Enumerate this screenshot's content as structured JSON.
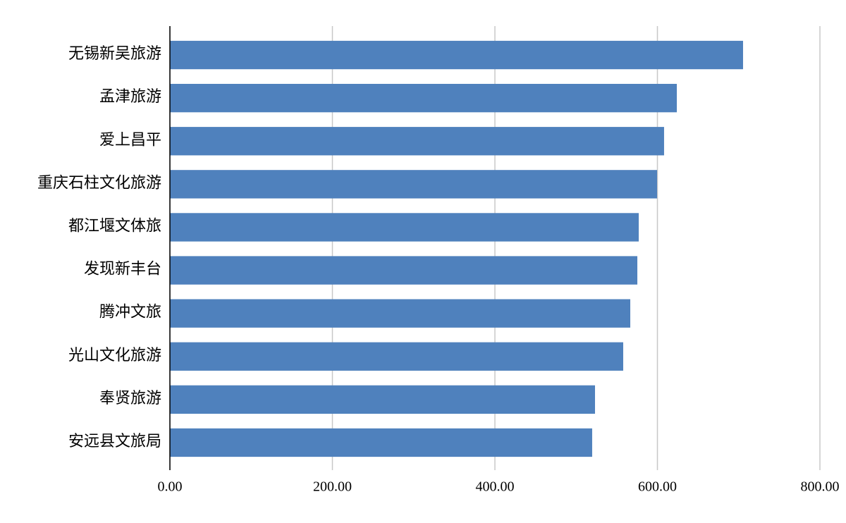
{
  "chart_data": {
    "type": "bar",
    "orientation": "horizontal",
    "categories": [
      "无锡新吴旅游",
      "孟津旅游",
      "爱上昌平",
      "重庆石柱文化旅游",
      "都江堰文体旅",
      "发现新丰台",
      "腾冲文旅",
      "光山文化旅游",
      "奉贤旅游",
      "安远县文旅局"
    ],
    "values": [
      705.4,
      623.9,
      608.2,
      599.6,
      577.0,
      575.3,
      566.6,
      557.9,
      523.2,
      519.7
    ],
    "color": "#4f81bd",
    "xlim": [
      0,
      800
    ],
    "xticks": [
      {
        "value": 0,
        "label": "0.00"
      },
      {
        "value": 200,
        "label": "200.00"
      },
      {
        "value": 400,
        "label": "400.00"
      },
      {
        "value": 600,
        "label": "600.00"
      },
      {
        "value": 800,
        "label": "800.00"
      }
    ],
    "grid": true
  }
}
